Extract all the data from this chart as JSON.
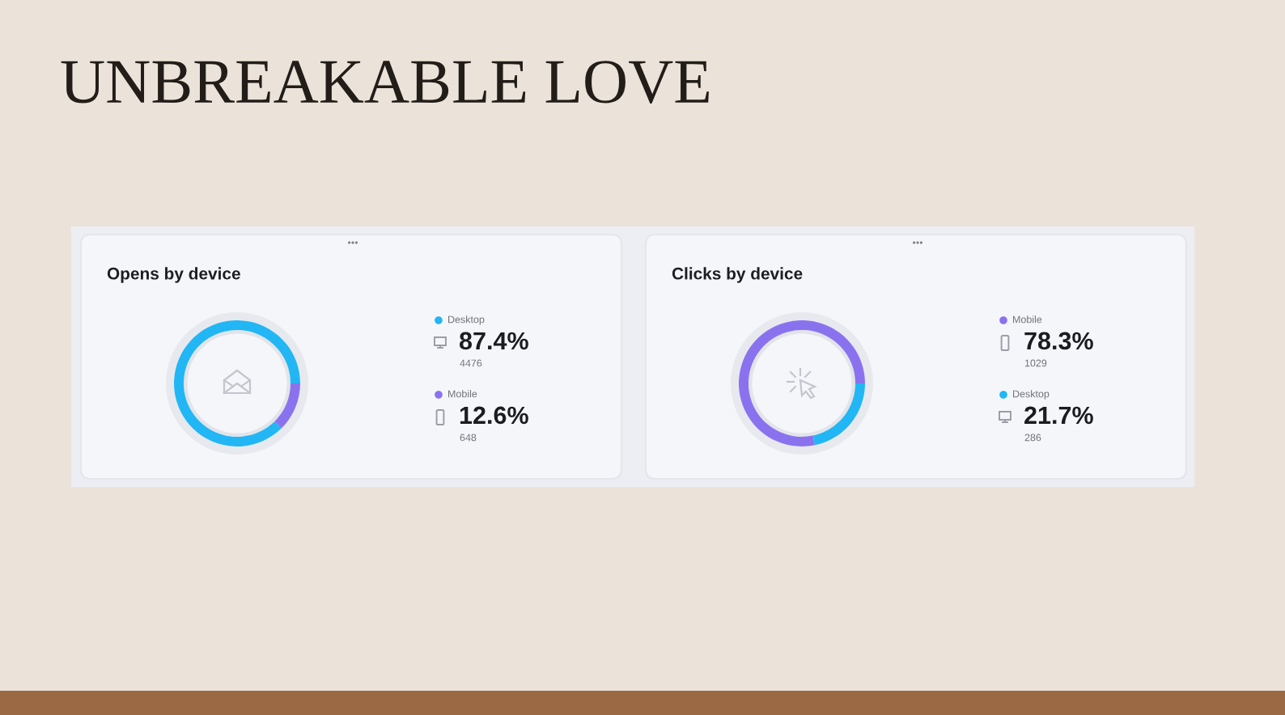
{
  "chart_data": [
    {
      "type": "other",
      "title": "UNBREAKABLE LOVE"
    },
    {
      "type": "donut",
      "title": "Opens by device",
      "categories": [
        "Desktop",
        "Mobile"
      ],
      "values": [
        87.4,
        12.6
      ],
      "colors": [
        "#22b6f4",
        "#8a72ef"
      ],
      "value_labels": [
        "87.4%",
        "12.6%"
      ],
      "annotations": [
        "4476",
        "648"
      ],
      "legend": "right"
    },
    {
      "type": "donut",
      "title": "Clicks by device",
      "categories": [
        "Mobile",
        "Desktop"
      ],
      "values": [
        78.3,
        21.7
      ],
      "colors": [
        "#8a72ef",
        "#22b6f4"
      ],
      "value_labels": [
        "78.3%",
        "21.7%"
      ],
      "annotations": [
        "1029",
        "286"
      ],
      "legend": "right"
    }
  ]
}
